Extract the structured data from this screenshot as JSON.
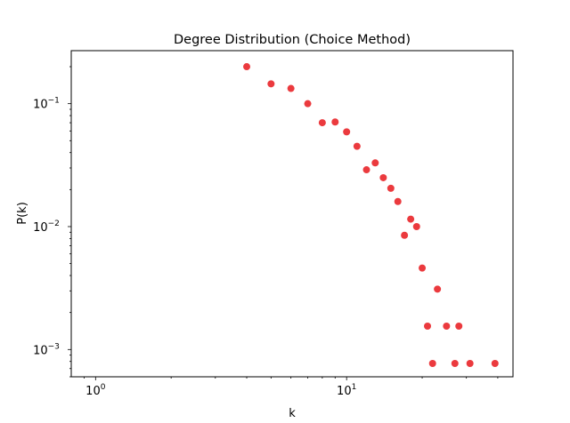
{
  "chart_data": {
    "type": "scatter",
    "title": "Degree Distribution (Choice Method)",
    "xlabel": "k",
    "ylabel": "P(k)",
    "xscale": "log",
    "yscale": "log",
    "xlim": [
      0.8,
      46
    ],
    "ylim": [
      0.0006,
      0.27
    ],
    "grid": false,
    "marker_color": "#e8181c",
    "x_ticks": [
      {
        "value": 1,
        "base": "10",
        "exp": "0"
      },
      {
        "value": 10,
        "base": "10",
        "exp": "1"
      }
    ],
    "y_ticks": [
      {
        "value": 0.001,
        "base": "10",
        "exp": "−3"
      },
      {
        "value": 0.01,
        "base": "10",
        "exp": "−2"
      },
      {
        "value": 0.1,
        "base": "10",
        "exp": "−1"
      }
    ],
    "points": [
      {
        "x": 4,
        "y": 0.2
      },
      {
        "x": 5,
        "y": 0.145
      },
      {
        "x": 6,
        "y": 0.133
      },
      {
        "x": 7,
        "y": 0.1
      },
      {
        "x": 8,
        "y": 0.07
      },
      {
        "x": 9,
        "y": 0.071
      },
      {
        "x": 10,
        "y": 0.059
      },
      {
        "x": 11,
        "y": 0.045
      },
      {
        "x": 12,
        "y": 0.029
      },
      {
        "x": 13,
        "y": 0.033
      },
      {
        "x": 14,
        "y": 0.025
      },
      {
        "x": 15,
        "y": 0.0205
      },
      {
        "x": 16,
        "y": 0.016
      },
      {
        "x": 17,
        "y": 0.0085
      },
      {
        "x": 18,
        "y": 0.0115
      },
      {
        "x": 19,
        "y": 0.01
      },
      {
        "x": 20,
        "y": 0.0046
      },
      {
        "x": 21,
        "y": 0.00155
      },
      {
        "x": 22,
        "y": 0.00077
      },
      {
        "x": 23,
        "y": 0.0031
      },
      {
        "x": 25,
        "y": 0.00155
      },
      {
        "x": 27,
        "y": 0.00077
      },
      {
        "x": 28,
        "y": 0.00155
      },
      {
        "x": 31,
        "y": 0.00077
      },
      {
        "x": 39,
        "y": 0.00077
      }
    ]
  }
}
